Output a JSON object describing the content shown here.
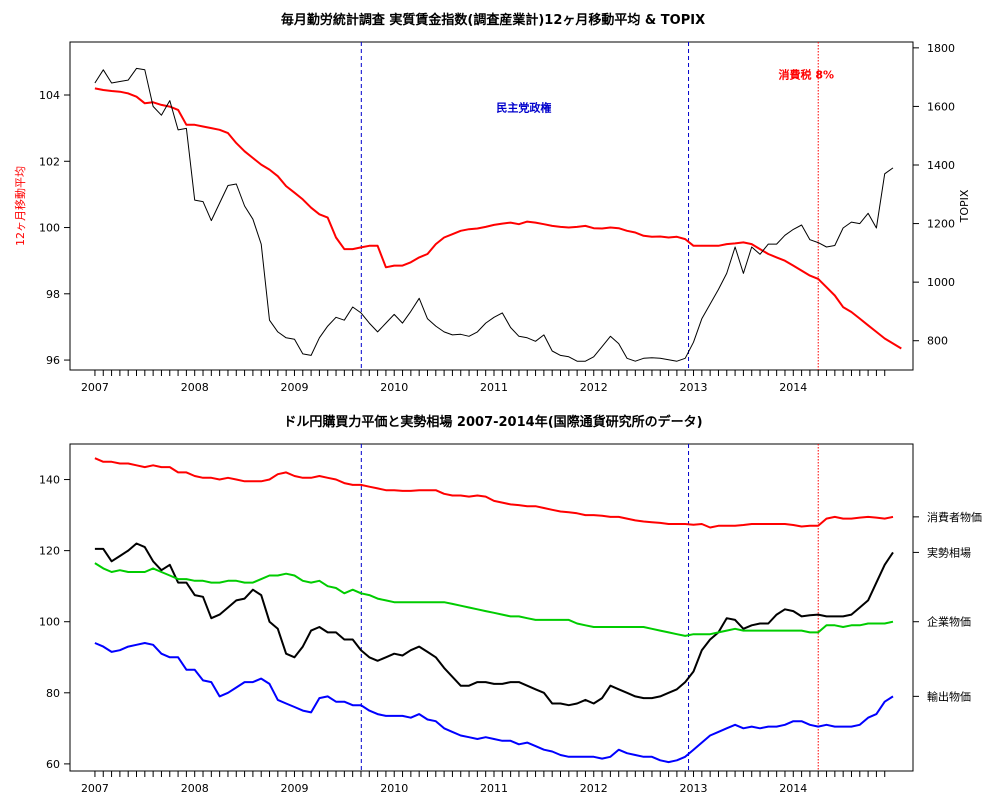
{
  "chart_data": [
    {
      "type": "line",
      "title": "毎月勤労統計調査 実質賃金指数(調査産業計)12ヶ月移動平均 & TOPIX",
      "ylabel_left": "12ヶ月移動平均",
      "ylabel_right": "TOPIX",
      "xlim": [
        2006.75,
        2015.2
      ],
      "x_ticks": [
        2007,
        2008,
        2009,
        2010,
        2011,
        2012,
        2013,
        2014
      ],
      "ylim_left": [
        95.7,
        105.6
      ],
      "ylim_right": [
        700,
        1820
      ],
      "y_ticks_left": [
        96,
        98,
        100,
        102,
        104
      ],
      "y_ticks_right": [
        800,
        1000,
        1200,
        1400,
        1600,
        1800
      ],
      "series": [
        {
          "axis": "left",
          "color": "#ff0000",
          "x_start": 2007.0,
          "x_step": 0.08333,
          "values": [
            104.2,
            104.15,
            104.12,
            104.1,
            104.05,
            103.95,
            103.75,
            103.78,
            103.7,
            103.65,
            103.55,
            103.1,
            103.1,
            103.05,
            103.0,
            102.95,
            102.85,
            102.55,
            102.3,
            102.1,
            101.9,
            101.75,
            101.55,
            101.25,
            101.05,
            100.85,
            100.6,
            100.4,
            100.3,
            99.7,
            99.35,
            99.35,
            99.4,
            99.45,
            99.45,
            98.8,
            98.85,
            98.85,
            98.95,
            99.1,
            99.2,
            99.5,
            99.7,
            99.8,
            99.9,
            99.95,
            99.97,
            100.02,
            100.08,
            100.12,
            100.15,
            100.1,
            100.18,
            100.15,
            100.1,
            100.05,
            100.02,
            100.0,
            100.02,
            100.05,
            99.98,
            99.97,
            100.0,
            99.98,
            99.9,
            99.85,
            99.75,
            99.72,
            99.73,
            99.7,
            99.72,
            99.65,
            99.45,
            99.45,
            99.45,
            99.45,
            99.5,
            99.52,
            99.55,
            99.5,
            99.35,
            99.2,
            99.1,
            99.0,
            98.85,
            98.7,
            98.55,
            98.45,
            98.2,
            97.95,
            97.6,
            97.45,
            97.25,
            97.05,
            96.85,
            96.65,
            96.5,
            96.35
          ]
        },
        {
          "axis": "right",
          "color": "#000000",
          "x_start": 2007.0,
          "x_step": 0.08333,
          "values": [
            1680,
            1725,
            1680,
            1685,
            1690,
            1730,
            1725,
            1600,
            1570,
            1620,
            1520,
            1525,
            1280,
            1275,
            1210,
            1270,
            1330,
            1335,
            1260,
            1215,
            1130,
            870,
            830,
            810,
            805,
            755,
            750,
            810,
            850,
            880,
            870,
            915,
            895,
            860,
            830,
            860,
            890,
            860,
            900,
            945,
            875,
            850,
            830,
            820,
            822,
            815,
            830,
            860,
            880,
            895,
            845,
            815,
            810,
            798,
            820,
            765,
            750,
            745,
            730,
            730,
            745,
            780,
            815,
            790,
            740,
            730,
            740,
            742,
            740,
            735,
            730,
            740,
            795,
            875,
            925,
            975,
            1030,
            1120,
            1030,
            1120,
            1095,
            1130,
            1130,
            1160,
            1180,
            1195,
            1145,
            1135,
            1120,
            1125,
            1185,
            1205,
            1200,
            1235,
            1185,
            1370,
            1390
          ]
        }
      ],
      "vlines": [
        {
          "x": 2009.67,
          "color": "#0000cc",
          "style": "dashed"
        },
        {
          "x": 2012.95,
          "color": "#0000cc",
          "style": "dashed"
        },
        {
          "x": 2014.25,
          "color": "#ff0000",
          "style": "dotted"
        }
      ],
      "annotations": [
        {
          "text": "民主党政権",
          "x": 2011.3,
          "y": 103.5,
          "color": "#0000cc"
        },
        {
          "text": "消費税 8%",
          "x": 2014.13,
          "y": 104.5,
          "color": "#ff0000"
        }
      ]
    },
    {
      "type": "line",
      "title": "ドル円購買力平価と実勢相場 2007-2014年(国際通貨研究所のデータ)",
      "xlim": [
        2006.75,
        2015.2
      ],
      "x_ticks": [
        2007,
        2008,
        2009,
        2010,
        2011,
        2012,
        2013,
        2014
      ],
      "ylim": [
        58,
        150
      ],
      "y_ticks": [
        60,
        80,
        100,
        120,
        140
      ],
      "series": [
        {
          "name": "消費者物価",
          "color": "#ff0000",
          "x_start": 2007.0,
          "x_step": 0.08333,
          "values": [
            146,
            145,
            145,
            144.5,
            144.5,
            144,
            143.5,
            144,
            143.5,
            143.5,
            142,
            142,
            141,
            140.5,
            140.5,
            140,
            140.5,
            140,
            139.5,
            139.5,
            139.5,
            140,
            141.5,
            142,
            141,
            140.5,
            140.5,
            141,
            140.5,
            140,
            139,
            138.5,
            138.5,
            138,
            137.5,
            137,
            137,
            136.8,
            136.8,
            137,
            137,
            137,
            136,
            135.5,
            135.5,
            135.2,
            135.5,
            135.2,
            134,
            133.5,
            133,
            132.8,
            132.5,
            132.5,
            132,
            131.5,
            131,
            130.8,
            130.5,
            130,
            130,
            129.8,
            129.5,
            129.5,
            129,
            128.5,
            128.2,
            128,
            127.8,
            127.5,
            127.5,
            127.5,
            127.3,
            127.5,
            126.5,
            127,
            127,
            127,
            127.2,
            127.5,
            127.5,
            127.5,
            127.5,
            127.5,
            127.2,
            126.8,
            127,
            127,
            129,
            129.5,
            129,
            129,
            129.3,
            129.5,
            129.3,
            129,
            129.5
          ]
        },
        {
          "name": "実勢相場",
          "color": "#000000",
          "x_start": 2007.0,
          "x_step": 0.08333,
          "values": [
            120.5,
            120.5,
            117,
            118.5,
            120,
            122,
            121,
            117,
            114.5,
            116,
            111,
            111,
            107.5,
            107,
            101,
            102,
            104,
            106,
            106.5,
            109,
            107.5,
            100,
            98,
            91,
            90,
            93,
            97.5,
            98.5,
            97,
            97,
            95,
            95,
            92,
            90,
            89,
            90,
            91,
            90.5,
            92,
            93,
            91.5,
            90,
            87,
            84.5,
            82,
            82,
            83,
            83,
            82.5,
            82.5,
            83,
            83,
            82,
            81,
            80,
            77,
            77,
            76.5,
            77,
            78,
            77,
            78.5,
            82,
            81,
            80,
            79,
            78.5,
            78.5,
            79,
            80,
            81,
            83,
            86,
            92,
            95,
            97,
            101,
            100.5,
            98,
            99,
            99.5,
            99.5,
            102,
            103.5,
            103,
            101.5,
            101.8,
            102,
            101.5,
            101.5,
            101.5,
            102,
            104,
            106,
            111,
            116,
            119.5
          ]
        },
        {
          "name": "企業物価",
          "color": "#00cc00",
          "x_start": 2007.0,
          "x_step": 0.08333,
          "values": [
            116.5,
            115,
            114,
            114.5,
            114,
            114,
            114,
            115,
            114,
            113,
            112,
            112,
            111.5,
            111.5,
            111,
            111,
            111.5,
            111.5,
            111,
            111,
            112,
            113,
            113,
            113.5,
            113,
            111.5,
            111,
            111.5,
            110,
            109.5,
            108,
            109,
            108,
            107.5,
            106.5,
            106,
            105.5,
            105.5,
            105.5,
            105.5,
            105.5,
            105.5,
            105.5,
            105,
            104.5,
            104,
            103.5,
            103,
            102.5,
            102,
            101.5,
            101.5,
            101,
            100.5,
            100.5,
            100.5,
            100.5,
            100.5,
            99.5,
            99,
            98.5,
            98.5,
            98.5,
            98.5,
            98.5,
            98.5,
            98.5,
            98,
            97.5,
            97,
            96.5,
            96,
            96.5,
            96.5,
            96.5,
            97,
            97.5,
            98,
            97.5,
            97.5,
            97.5,
            97.5,
            97.5,
            97.5,
            97.5,
            97.5,
            97,
            97,
            99,
            99,
            98.5,
            99,
            99,
            99.5,
            99.5,
            99.5,
            100
          ]
        },
        {
          "name": "輸出物価",
          "color": "#0000ff",
          "x_start": 2007.0,
          "x_step": 0.08333,
          "values": [
            94,
            93,
            91.5,
            92,
            93,
            93.5,
            94,
            93.5,
            91,
            90,
            90,
            86.5,
            86.5,
            83.5,
            83,
            79,
            80,
            81.5,
            83,
            83,
            84,
            82.5,
            78,
            77,
            76,
            75,
            74.5,
            78.5,
            79,
            77.5,
            77.5,
            76.5,
            76.5,
            75,
            74,
            73.5,
            73.5,
            73.5,
            73,
            74,
            72.5,
            72,
            70,
            69,
            68,
            67.5,
            67,
            67.5,
            67,
            66.5,
            66.5,
            65.5,
            66,
            65,
            64,
            63.5,
            62.5,
            62,
            62,
            62,
            62,
            61.5,
            62,
            64,
            63,
            62.5,
            62,
            62,
            61,
            60.5,
            61,
            62,
            64,
            66,
            68,
            69,
            70,
            71,
            70,
            70.5,
            70,
            70.5,
            70.5,
            71,
            72,
            72,
            71,
            70.5,
            71,
            70.5,
            70.5,
            70.5,
            71,
            73,
            74,
            77.5,
            79
          ]
        }
      ],
      "vlines": [
        {
          "x": 2009.67,
          "color": "#0000cc",
          "style": "dashed"
        },
        {
          "x": 2012.95,
          "color": "#0000cc",
          "style": "dashed"
        },
        {
          "x": 2014.25,
          "color": "#ff0000",
          "style": "dotted"
        }
      ]
    }
  ]
}
